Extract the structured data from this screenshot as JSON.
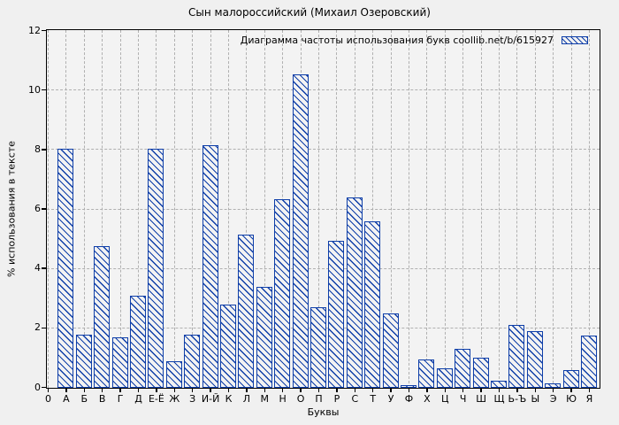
{
  "chart_data": {
    "type": "bar",
    "title": "Сын малороссийский (Михаил Озеровский)",
    "legend_label": "Диаграмма частоты использования букв coollib.net/b/615927",
    "legend_position": "top-right",
    "xlabel": "Буквы",
    "ylabel": "% использования в тексте",
    "ylim": [
      0,
      12
    ],
    "yticks": [
      0,
      2,
      4,
      6,
      8,
      10,
      12
    ],
    "grid": true,
    "categories": [
      "0",
      "А",
      "Б",
      "В",
      "Г",
      "Д",
      "Е-Ё",
      "Ж",
      "З",
      "И-Й",
      "К",
      "Л",
      "М",
      "Н",
      "О",
      "П",
      "Р",
      "С",
      "Т",
      "У",
      "Ф",
      "Х",
      "Ц",
      "Ч",
      "Ш",
      "Щ",
      "Ь-Ъ",
      "Ы",
      "Э",
      "Ю",
      "Я"
    ],
    "values": [
      0,
      8.05,
      1.8,
      4.75,
      1.7,
      3.1,
      8.05,
      0.9,
      1.8,
      8.15,
      2.8,
      5.15,
      3.4,
      6.35,
      10.55,
      2.7,
      4.95,
      6.4,
      5.6,
      2.5,
      0.1,
      0.95,
      0.65,
      1.3,
      1.0,
      0.25,
      2.1,
      1.9,
      0.15,
      0.6,
      1.75
    ],
    "colors": {
      "bar": "#0e3ea8",
      "figure_bg": "#f0f0f0",
      "plot_bg": "#f3f3f3",
      "grid": "#b0b0b0",
      "text": "#000000"
    }
  }
}
